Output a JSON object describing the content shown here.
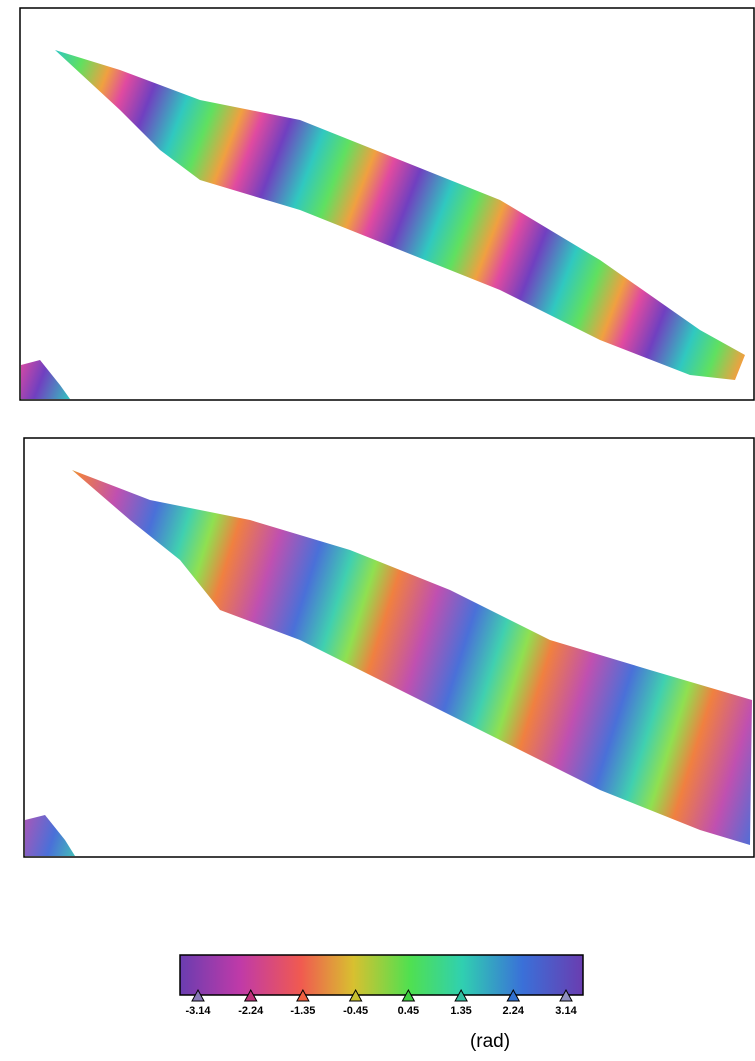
{
  "colorbar": {
    "ticks": [
      -3.14,
      -2.24,
      -1.35,
      -0.45,
      0.45,
      1.35,
      2.24,
      3.14
    ],
    "range": [
      -3.14,
      3.14
    ],
    "tick_colors": [
      "#8a7ab8",
      "#c0307a",
      "#f06040",
      "#c8c030",
      "#40d040",
      "#30c0a0",
      "#3070d0",
      "#9090c0"
    ],
    "unit": "(rad)"
  }
}
